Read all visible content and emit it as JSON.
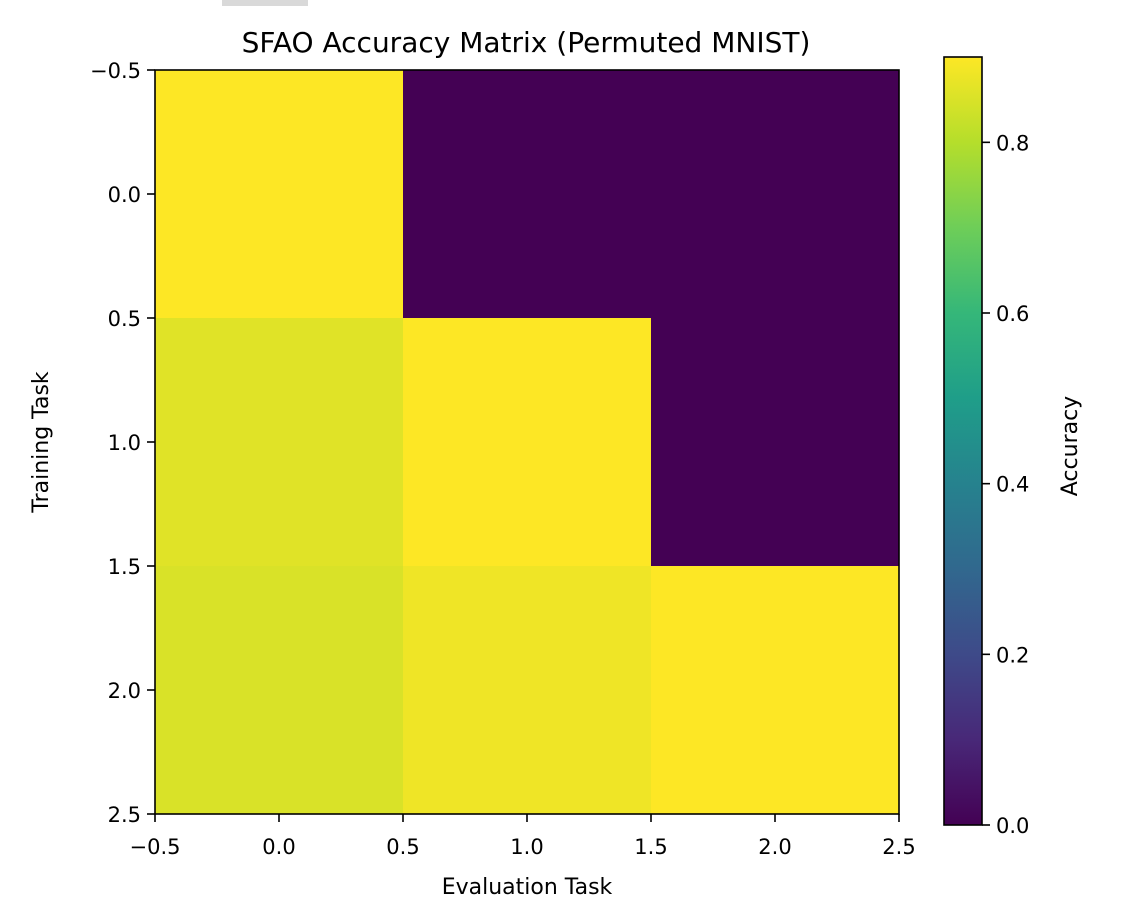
{
  "chart_data": {
    "type": "heatmap",
    "title": "SFAO Accuracy Matrix (Permuted MNIST)",
    "xlabel": "Evaluation Task",
    "ylabel": "Training Task",
    "xlim": [
      -0.5,
      2.5
    ],
    "ylim": [
      2.5,
      -0.5
    ],
    "x_ticks": [
      "−0.5",
      "0.0",
      "0.5",
      "1.0",
      "1.5",
      "2.0",
      "2.5"
    ],
    "y_ticks": [
      "−0.5",
      "0.0",
      "0.5",
      "1.0",
      "1.5",
      "2.0",
      "2.5"
    ],
    "matrix": [
      [
        0.9,
        0.0,
        0.0
      ],
      [
        0.86,
        0.9,
        0.0
      ],
      [
        0.85,
        0.88,
        0.9
      ]
    ],
    "colormap": "viridis",
    "colorbar": {
      "label": "Accuracy",
      "range": [
        0.0,
        0.9
      ],
      "ticks": [
        "0.0",
        "0.2",
        "0.4",
        "0.6",
        "0.8"
      ]
    },
    "grid": false
  }
}
